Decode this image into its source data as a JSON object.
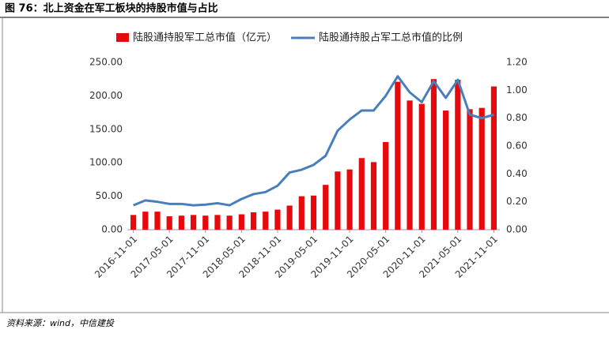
{
  "header": {
    "title": "图 76：北上资金在军工板块的持股市值与占比"
  },
  "footer": {
    "source": "资料来源：wind，中信建投"
  },
  "chart_data": {
    "type": "bar_line",
    "categories": [
      "2016-11-01",
      null,
      null,
      "2017-05-01",
      null,
      null,
      "2017-11-01",
      null,
      null,
      "2018-05-01",
      null,
      null,
      "2018-11-01",
      null,
      null,
      "2019-05-01",
      null,
      null,
      "2019-11-01",
      null,
      null,
      "2020-05-01",
      null,
      null,
      "2020-11-01",
      null,
      null,
      "2021-05-01",
      null,
      null,
      "2021-11-01"
    ],
    "series": [
      {
        "name": "陆股通持股军工总市值（亿元）",
        "type": "bar",
        "color": "#e8090c",
        "values": [
          22,
          27,
          27,
          20,
          21,
          22,
          21,
          22,
          21,
          23,
          26,
          27,
          30,
          36,
          50,
          51,
          67,
          87,
          90,
          107,
          101,
          131,
          221,
          193,
          188,
          225,
          178,
          224,
          180,
          182,
          214
        ]
      },
      {
        "name": "陆股通持股占军工总市值的比例",
        "type": "line",
        "color": "#4a7ebb",
        "axis": "y2",
        "values": [
          0.175,
          0.21,
          0.2,
          0.185,
          0.185,
          0.175,
          0.18,
          0.19,
          0.175,
          0.22,
          0.255,
          0.27,
          0.315,
          0.41,
          0.43,
          0.465,
          0.53,
          0.71,
          0.79,
          0.855,
          0.855,
          0.96,
          1.1,
          0.985,
          0.915,
          1.065,
          0.945,
          1.075,
          0.825,
          0.8,
          0.825
        ]
      }
    ],
    "ylim": [
      0,
      250
    ],
    "yticks": [
      {
        "value": 0,
        "label": "0.00"
      },
      {
        "value": 50,
        "label": "50.00"
      },
      {
        "value": 100,
        "label": "100.00"
      },
      {
        "value": 150,
        "label": "150.00"
      },
      {
        "value": 200,
        "label": "200.00"
      },
      {
        "value": 250,
        "label": "250.00"
      }
    ],
    "y2lim": [
      0,
      1.2
    ],
    "y2ticks": [
      {
        "value": 0,
        "label": "0.00"
      },
      {
        "value": 0.2,
        "label": "0.20"
      },
      {
        "value": 0.4,
        "label": "0.40"
      },
      {
        "value": 0.6,
        "label": "0.60"
      },
      {
        "value": 0.8,
        "label": "0.80"
      },
      {
        "value": 1.0,
        "label": "1.00"
      },
      {
        "value": 1.2,
        "label": "1.20"
      }
    ],
    "legend": "top"
  }
}
